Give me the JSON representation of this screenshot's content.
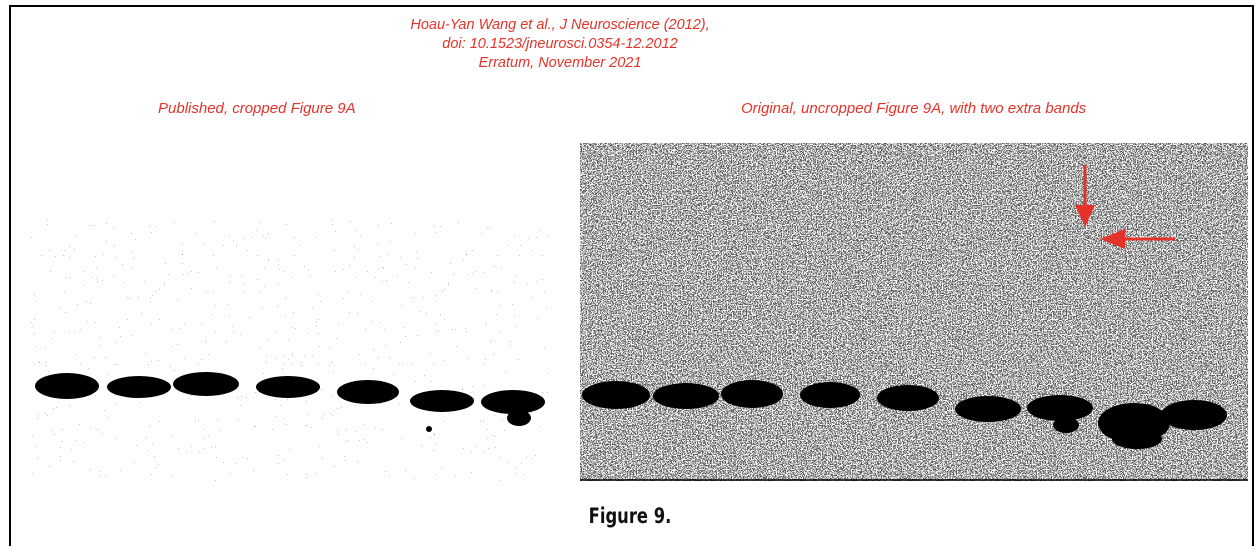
{
  "citation": {
    "line1": "Hoau-Yan Wang et al., J Neuroscience (2012),",
    "line2": "doi: 10.1523/jneurosci.0354-12.2012",
    "line3": "Erratum, November 2021"
  },
  "panels": {
    "left_label": "Published, cropped Figure 9A",
    "right_label": "Original, uncropped Figure 9A, with two extra bands"
  },
  "figure_title": "Figure 9.",
  "colors": {
    "annotation": "#e5332a",
    "band": "#000000",
    "membrane": "#ffffff"
  },
  "icons": {
    "down_arrow": "red-arrow-down-icon",
    "left_arrow": "red-arrow-left-icon"
  },
  "blots": {
    "left_band_count": 7,
    "right_band_count": 9
  }
}
